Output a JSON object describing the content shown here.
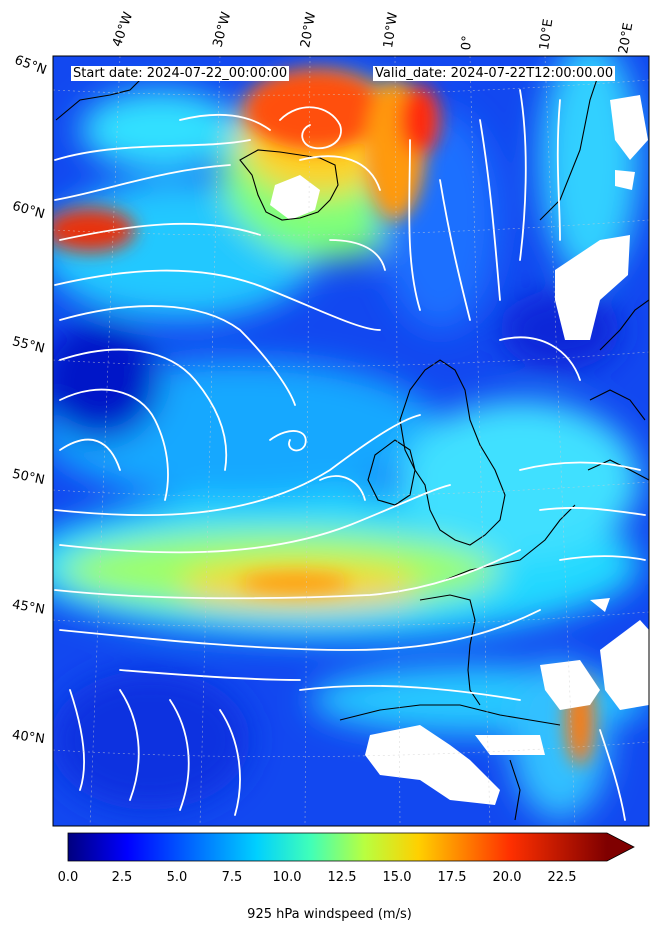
{
  "header": {
    "start_date": "Start date: 2024-07-22_00:00:00",
    "valid_date": "Valid_date: 2024-07-22T12:00:00.00"
  },
  "axes": {
    "lon_labels": [
      "40°W",
      "30°W",
      "20°W",
      "10°W",
      "0°",
      "10°E",
      "20°E"
    ],
    "lat_labels": [
      "65°N",
      "60°N",
      "55°N",
      "50°N",
      "45°N",
      "40°N"
    ]
  },
  "colorbar": {
    "ticks": [
      "0.0",
      "2.5",
      "5.0",
      "7.5",
      "10.0",
      "12.5",
      "15.0",
      "17.5",
      "20.0",
      "22.5"
    ],
    "label": "925 hPa windspeed (m/s)",
    "range": [
      0,
      25
    ],
    "extend": "max",
    "colormap": "jet"
  },
  "colors": {
    "calm": "#0000c8",
    "moderate": "#00ffff",
    "strong": "#ffff00",
    "very_strong": "#ff0000",
    "streamlines": "#ffffff",
    "coastline": "#000000"
  }
}
